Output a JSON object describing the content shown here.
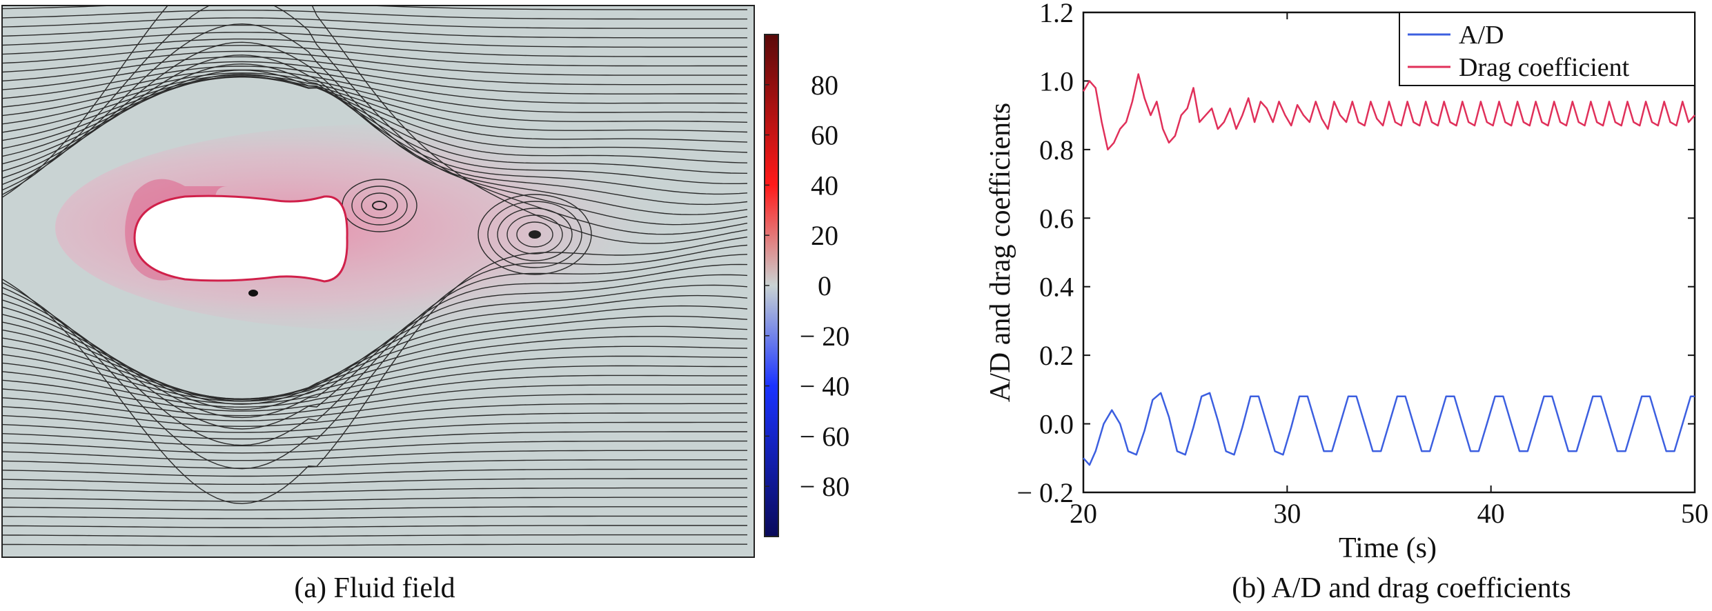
{
  "panel_a": {
    "caption": "(a) Fluid field",
    "colorbar": {
      "min": -100,
      "max": 100,
      "ticks": [
        80,
        60,
        40,
        20,
        0,
        -20,
        -40,
        -60,
        -80
      ],
      "tick_labels": [
        "80",
        "60",
        "40",
        "20",
        "0",
        "− 20",
        "− 40",
        "− 60",
        "− 80"
      ],
      "colors": {
        "high": "#5a0a0a",
        "mid_high": "#ff1a1a",
        "zero": "#c9d3d3",
        "mid_low": "#1a33ff",
        "low": "#0a0a5a"
      }
    },
    "colors": {
      "background": "#c9d3d3",
      "streamline": "#2b2b2b",
      "wake": "#e8a5bd",
      "body": "#ffffff"
    }
  },
  "panel_b": {
    "caption": "(b) A/D and drag coefficients",
    "legend_position": "top-right"
  },
  "chart_data": [
    {
      "type": "line",
      "title": "",
      "xlabel": "Time (s)",
      "ylabel": "A/D and drag coefficients",
      "xlim": [
        20,
        50
      ],
      "ylim": [
        -0.2,
        1.2
      ],
      "x_ticks": [
        20,
        30,
        40,
        50
      ],
      "x_tick_labels": [
        "20",
        "30",
        "40",
        "50"
      ],
      "y_ticks": [
        1.2,
        1.0,
        0.8,
        0.6,
        0.4,
        0.2,
        0.0,
        -0.2
      ],
      "y_tick_labels": [
        "1.2",
        "1.0",
        "0.8",
        "0.6",
        "0.4",
        "0.2",
        "0.0",
        "− 0.2"
      ],
      "grid": false,
      "legend": "top-right",
      "series": [
        {
          "name": "A/D",
          "color": "#3c5fe0",
          "x": [
            20,
            20.3,
            20.6,
            21.0,
            21.4,
            21.8,
            22.2,
            22.6,
            23.0,
            23.4,
            23.8,
            24.2,
            24.6,
            25.0,
            25.4,
            25.8,
            26.2,
            26.6,
            27.0,
            27.4,
            27.8,
            28.2,
            28.6,
            29.0,
            29.4,
            29.8,
            30.2,
            30.6,
            31.0,
            31.4,
            31.8,
            32.2,
            32.6,
            33.0,
            33.4,
            33.8,
            34.2,
            34.6,
            35.0,
            35.4,
            35.8,
            36.2,
            36.6,
            37.0,
            37.4,
            37.8,
            38.2,
            38.6,
            39.0,
            39.4,
            39.8,
            40.2,
            40.6,
            41.0,
            41.4,
            41.8,
            42.2,
            42.6,
            43.0,
            43.4,
            43.8,
            44.2,
            44.6,
            45.0,
            45.4,
            45.8,
            46.2,
            46.6,
            47.0,
            47.4,
            47.8,
            48.2,
            48.6,
            49.0,
            49.4,
            49.8,
            50.0
          ],
          "y": [
            -0.1,
            -0.12,
            -0.08,
            0.0,
            0.04,
            0.0,
            -0.08,
            -0.09,
            -0.02,
            0.07,
            0.09,
            0.02,
            -0.08,
            -0.09,
            -0.01,
            0.08,
            0.09,
            0.01,
            -0.08,
            -0.09,
            -0.01,
            0.08,
            0.08,
            0.0,
            -0.08,
            -0.09,
            -0.01,
            0.08,
            0.08,
            0.0,
            -0.08,
            -0.08,
            0.0,
            0.08,
            0.08,
            0.0,
            -0.08,
            -0.08,
            0.0,
            0.08,
            0.08,
            0.0,
            -0.08,
            -0.08,
            0.0,
            0.08,
            0.08,
            0.0,
            -0.08,
            -0.08,
            0.0,
            0.08,
            0.08,
            0.0,
            -0.08,
            -0.08,
            0.0,
            0.08,
            0.08,
            0.0,
            -0.08,
            -0.08,
            0.0,
            0.08,
            0.08,
            0.0,
            -0.08,
            -0.08,
            0.0,
            0.08,
            0.08,
            0.0,
            -0.08,
            -0.08,
            0.0,
            0.08,
            0.08
          ]
        },
        {
          "name": "Drag coefficient",
          "color": "#e0305a",
          "x": [
            20,
            20.3,
            20.6,
            20.9,
            21.2,
            21.5,
            21.8,
            22.1,
            22.4,
            22.7,
            23.0,
            23.3,
            23.6,
            23.9,
            24.2,
            24.5,
            24.8,
            25.1,
            25.4,
            25.7,
            26.0,
            26.3,
            26.6,
            26.9,
            27.2,
            27.5,
            27.8,
            28.1,
            28.4,
            28.7,
            29.0,
            29.3,
            29.6,
            29.9,
            30.2,
            30.5,
            30.8,
            31.1,
            31.4,
            31.7,
            32.0,
            32.3,
            32.6,
            32.9,
            33.2,
            33.5,
            33.8,
            34.1,
            34.4,
            34.7,
            35.0,
            35.3,
            35.6,
            35.9,
            36.2,
            36.5,
            36.8,
            37.1,
            37.4,
            37.7,
            38.0,
            38.3,
            38.6,
            38.9,
            39.2,
            39.5,
            39.8,
            40.1,
            40.4,
            40.7,
            41.0,
            41.3,
            41.6,
            41.9,
            42.2,
            42.5,
            42.8,
            43.1,
            43.4,
            43.7,
            44.0,
            44.3,
            44.6,
            44.9,
            45.2,
            45.5,
            45.8,
            46.1,
            46.4,
            46.7,
            47.0,
            47.3,
            47.6,
            47.9,
            48.2,
            48.5,
            48.8,
            49.1,
            49.4,
            49.7,
            50.0
          ],
          "y": [
            0.97,
            1.0,
            0.98,
            0.88,
            0.8,
            0.82,
            0.86,
            0.88,
            0.94,
            1.02,
            0.95,
            0.9,
            0.94,
            0.86,
            0.82,
            0.84,
            0.9,
            0.92,
            0.98,
            0.88,
            0.9,
            0.92,
            0.86,
            0.88,
            0.92,
            0.86,
            0.9,
            0.95,
            0.88,
            0.94,
            0.92,
            0.88,
            0.94,
            0.9,
            0.87,
            0.93,
            0.9,
            0.88,
            0.94,
            0.89,
            0.86,
            0.94,
            0.9,
            0.88,
            0.94,
            0.88,
            0.87,
            0.94,
            0.89,
            0.87,
            0.94,
            0.88,
            0.87,
            0.94,
            0.88,
            0.87,
            0.94,
            0.88,
            0.87,
            0.94,
            0.88,
            0.87,
            0.94,
            0.88,
            0.87,
            0.94,
            0.88,
            0.87,
            0.94,
            0.88,
            0.87,
            0.94,
            0.88,
            0.87,
            0.94,
            0.88,
            0.87,
            0.94,
            0.88,
            0.87,
            0.94,
            0.88,
            0.87,
            0.94,
            0.88,
            0.87,
            0.94,
            0.88,
            0.87,
            0.94,
            0.88,
            0.87,
            0.94,
            0.88,
            0.87,
            0.94,
            0.88,
            0.87,
            0.94,
            0.88,
            0.9
          ]
        }
      ]
    }
  ]
}
